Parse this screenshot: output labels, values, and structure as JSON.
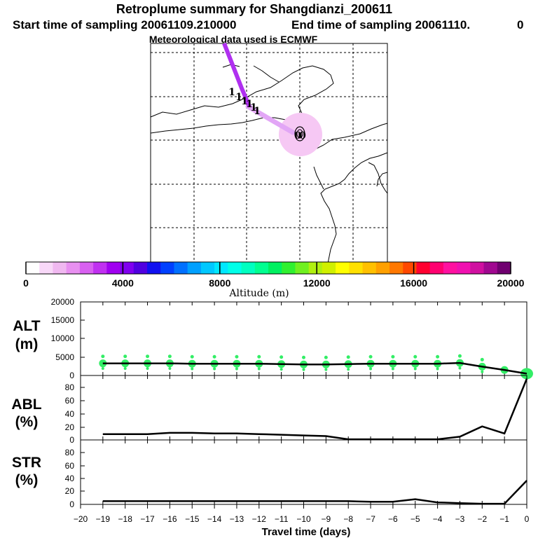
{
  "header": {
    "title": "Retroplume summary for Shangdianzi_200611",
    "start_text": "Start time of sampling 20061109.210000",
    "end_text": "End time of sampling 20061110.",
    "end_suffix": "0",
    "met_text": "Meteorological data used is ECMWF"
  },
  "map": {
    "labels": [
      "1",
      "1",
      "1",
      "1",
      "1",
      "1",
      "0",
      "0"
    ],
    "track_color": "#b030f0",
    "plume_color": "#f6c8f4"
  },
  "colorbar": {
    "label": "Altitude (m)",
    "ticks": [
      "0",
      "4000",
      "8000",
      "12000",
      "16000",
      "20000"
    ],
    "colors": [
      "#ffffff",
      "#f8d8f8",
      "#f0b8f0",
      "#e890f0",
      "#d860f0",
      "#c030f0",
      "#a000f0",
      "#8000f0",
      "#5000e0",
      "#1010f0",
      "#0040ff",
      "#0070ff",
      "#00a0ff",
      "#00c8ff",
      "#00e8ff",
      "#00ffe8",
      "#00ffc0",
      "#00ff90",
      "#00f060",
      "#30f030",
      "#70f020",
      "#b0f010",
      "#d0f000",
      "#ffff00",
      "#ffe000",
      "#ffc000",
      "#ffa000",
      "#ff7800",
      "#ff4800",
      "#ff0030",
      "#ff0070",
      "#ff10a0",
      "#f010b0",
      "#d010a0",
      "#a00890",
      "#700070"
    ]
  },
  "chart_data": [
    {
      "type": "line",
      "panel": "ALT",
      "ylabel_line1": "ALT",
      "ylabel_line2": "(m)",
      "ylim": [
        0,
        20000
      ],
      "yticks": [
        "20000",
        "15000",
        "10000",
        "5000",
        "0"
      ],
      "x": [
        0,
        -1,
        -2,
        -3,
        -4,
        -5,
        -6,
        -7,
        -8,
        -9,
        -10,
        -11,
        -12,
        -13,
        -14,
        -15,
        -16,
        -17,
        -18,
        -19
      ],
      "values": [
        500,
        1500,
        2400,
        3400,
        3200,
        3200,
        3200,
        3200,
        3100,
        3000,
        3000,
        3100,
        3200,
        3200,
        3200,
        3200,
        3300,
        3300,
        3300,
        3300
      ],
      "scatter_color": "#33ee66"
    },
    {
      "type": "line",
      "panel": "ABL",
      "ylabel_line1": "ABL",
      "ylabel_line2": "(%)",
      "ylim": [
        0,
        100
      ],
      "yticks": [
        "80",
        "60",
        "40",
        "20",
        "0"
      ],
      "x": [
        0,
        -1,
        -2,
        -3,
        -4,
        -5,
        -6,
        -7,
        -8,
        -9,
        -10,
        -11,
        -12,
        -13,
        -14,
        -15,
        -16,
        -17,
        -18,
        -19
      ],
      "values": [
        95,
        10,
        21,
        5,
        1,
        1,
        1,
        1,
        1,
        6,
        7,
        8,
        9,
        10,
        10,
        11,
        11,
        9,
        9,
        9
      ]
    },
    {
      "type": "line",
      "panel": "STR",
      "ylabel_line1": "STR",
      "ylabel_line2": "(%)",
      "ylim": [
        0,
        100
      ],
      "yticks": [
        "80",
        "60",
        "40",
        "20",
        "0"
      ],
      "x": [
        0,
        -1,
        -2,
        -3,
        -4,
        -5,
        -6,
        -7,
        -8,
        -9,
        -10,
        -11,
        -12,
        -13,
        -14,
        -15,
        -16,
        -17,
        -18,
        -19
      ],
      "values": [
        37,
        1,
        1,
        2,
        3,
        8,
        4,
        4,
        5,
        5,
        5,
        5,
        5,
        5,
        5,
        5,
        5,
        5,
        5,
        5
      ]
    }
  ],
  "x_axis": {
    "label": "Travel time (days)",
    "xlim": [
      -20,
      0
    ],
    "ticks": [
      "−20",
      "−19",
      "−18",
      "−17",
      "−16",
      "−15",
      "−14",
      "−13",
      "−12",
      "−11",
      "−10",
      "−9",
      "−8",
      "−7",
      "−6",
      "−5",
      "−4",
      "−3",
      "−2",
      "−1",
      "0"
    ]
  }
}
